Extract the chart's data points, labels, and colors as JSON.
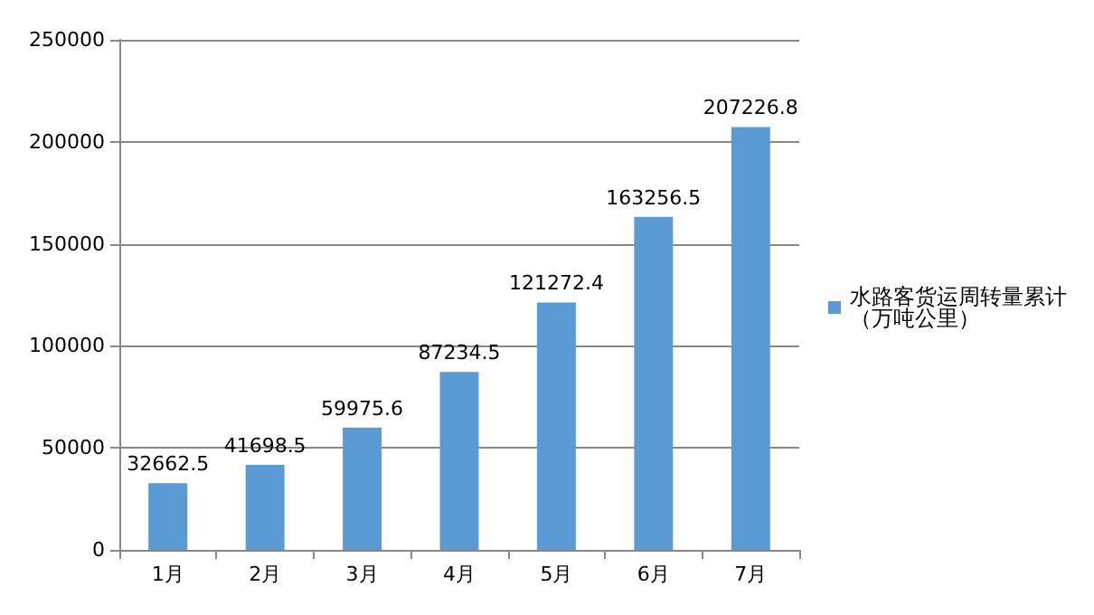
{
  "chart_data": {
    "type": "bar",
    "categories": [
      "1月",
      "2月",
      "3月",
      "4月",
      "5月",
      "6月",
      "7月"
    ],
    "series": [
      {
        "name": "水路客货运周转量累计（万吨公里）",
        "color": "#5b9bd5",
        "values": [
          32662.5,
          41698.5,
          59975.6,
          87234.5,
          121272.4,
          163256.5,
          207226.8
        ]
      }
    ],
    "ylim": [
      0,
      250000
    ],
    "yticks": [
      0,
      50000,
      100000,
      150000,
      200000,
      250000
    ],
    "grid": "y",
    "legend": "right",
    "data_labels": true
  }
}
